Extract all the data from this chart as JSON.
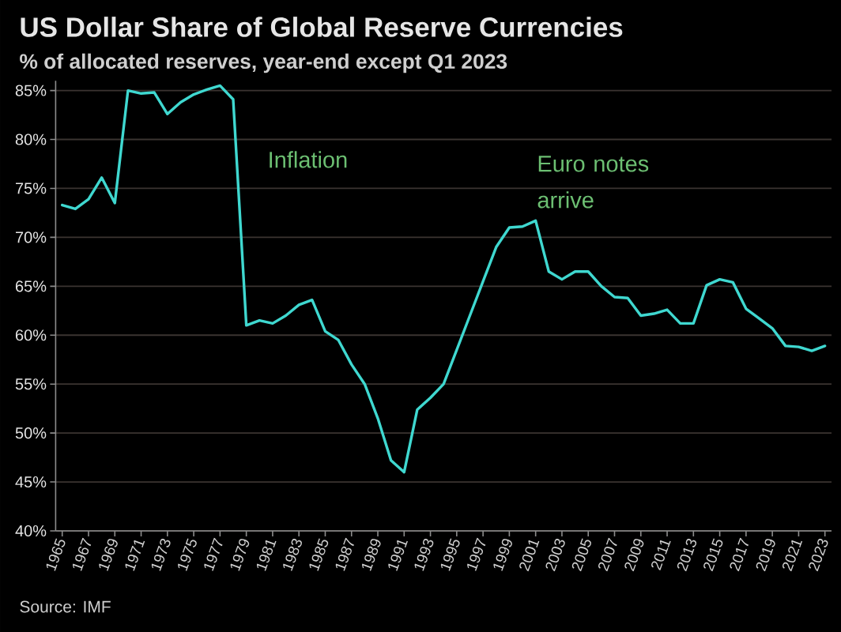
{
  "chart_data": {
    "type": "line",
    "title": "US Dollar Share of Global Reserve Currencies",
    "subtitle": "% of allocated reserves, year-end except Q1 2023",
    "x": [
      1965,
      1966,
      1967,
      1968,
      1969,
      1970,
      1971,
      1972,
      1973,
      1974,
      1975,
      1976,
      1977,
      1978,
      1979,
      1980,
      1981,
      1982,
      1983,
      1984,
      1985,
      1986,
      1987,
      1988,
      1989,
      1990,
      1991,
      1992,
      1993,
      1994,
      1995,
      1996,
      1997,
      1998,
      1999,
      2000,
      2001,
      2002,
      2003,
      2004,
      2005,
      2006,
      2007,
      2008,
      2009,
      2010,
      2011,
      2012,
      2013,
      2014,
      2015,
      2016,
      2017,
      2018,
      2019,
      2020,
      2021,
      2022,
      2023
    ],
    "values": [
      73.3,
      72.9,
      73.9,
      76.1,
      73.5,
      85.0,
      84.7,
      84.8,
      82.6,
      83.8,
      84.6,
      85.1,
      85.5,
      84.1,
      61.0,
      61.5,
      61.2,
      62.0,
      63.1,
      63.6,
      60.4,
      59.5,
      57.0,
      55.0,
      51.5,
      47.2,
      46.0,
      52.4,
      53.6,
      55.0,
      58.5,
      62.0,
      65.5,
      69.0,
      71.0,
      71.1,
      71.7,
      66.5,
      65.7,
      66.5,
      66.5,
      65.0,
      63.9,
      63.8,
      62.0,
      62.2,
      62.6,
      61.2,
      61.2,
      65.1,
      65.7,
      65.4,
      62.7,
      61.7,
      60.7,
      58.9,
      58.8,
      58.4,
      58.9
    ],
    "color": "#3fd8d0",
    "xlim": [
      1964.5,
      2023.5
    ],
    "xticks": [
      1965,
      1967,
      1969,
      1971,
      1973,
      1975,
      1977,
      1979,
      1981,
      1983,
      1985,
      1987,
      1989,
      1991,
      1993,
      1995,
      1997,
      1999,
      2001,
      2003,
      2005,
      2007,
      2009,
      2011,
      2013,
      2015,
      2017,
      2019,
      2021,
      2023
    ],
    "ylim": [
      40,
      86
    ],
    "yticks": [
      {
        "value": 40,
        "label": "40%"
      },
      {
        "value": 45,
        "label": "45%"
      },
      {
        "value": 50,
        "label": "50%"
      },
      {
        "value": 55,
        "label": "55%"
      },
      {
        "value": 60,
        "label": "60%"
      },
      {
        "value": 65,
        "label": "65%"
      },
      {
        "value": 70,
        "label": "70%"
      },
      {
        "value": 75,
        "label": "75%"
      },
      {
        "value": 80,
        "label": "80%"
      },
      {
        "value": 85,
        "label": "85%"
      }
    ],
    "grid": "y",
    "annotations": [
      "Inflation",
      "Euro notes arrive",
      "Source: IMF"
    ]
  }
}
